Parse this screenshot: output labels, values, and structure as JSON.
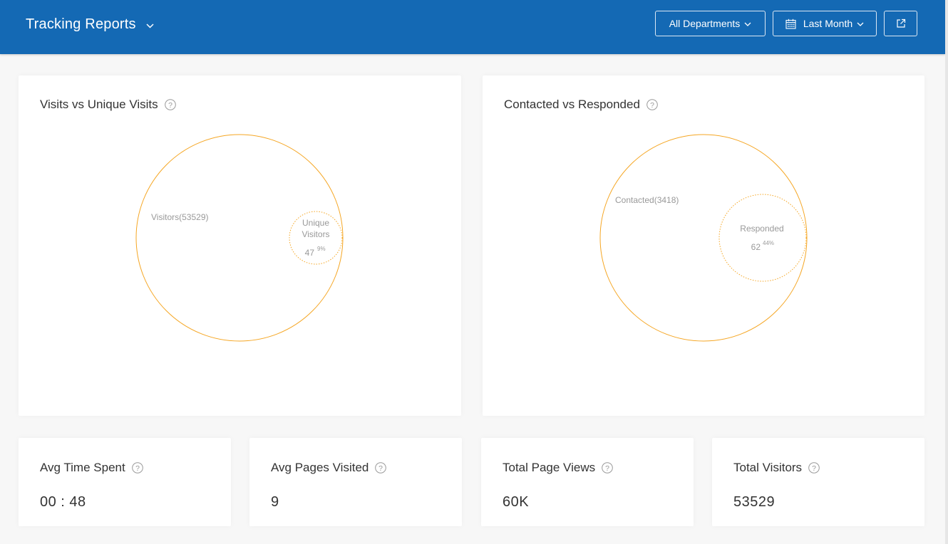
{
  "header": {
    "title": "Tracking Reports",
    "department_label": "All Departments",
    "period_label": "Last Month",
    "colors": {
      "bar": "#1469b4",
      "text": "#ffffff"
    }
  },
  "charts": [
    {
      "title": "Visits vs Unique Visits",
      "outer_label": "Visitors(53529)",
      "inner_label_lines": [
        "Unique",
        "Visitors"
      ],
      "inner_value": "47",
      "inner_percent": "9%"
    },
    {
      "title": "Contacted vs Responded",
      "outer_label": "Contacted(3418)",
      "inner_label_lines": [
        "Responded"
      ],
      "inner_value": "62",
      "inner_percent": "44%"
    }
  ],
  "stats": [
    {
      "label": "Avg Time Spent",
      "value": "00 : 48"
    },
    {
      "label": "Avg Pages Visited",
      "value": "9"
    },
    {
      "label": "Total Page Views",
      "value": "60K"
    },
    {
      "label": "Total Visitors",
      "value": "53529"
    }
  ],
  "icons": {
    "title_chevron": "chevron-down-icon",
    "calendar": "calendar-icon",
    "export": "external-link-icon",
    "help": "help-circle-icon"
  },
  "chart_colors": {
    "circle_stroke": "#f5a623",
    "label": "#999999"
  }
}
